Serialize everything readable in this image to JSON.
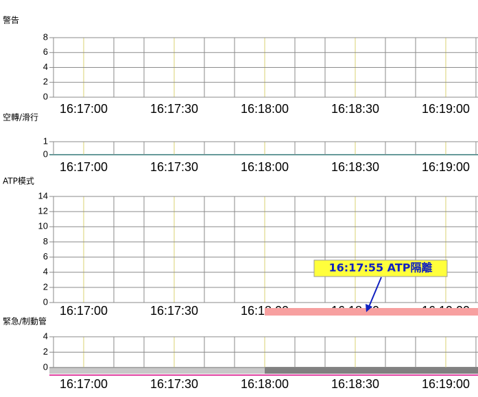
{
  "time_ticks": [
    "16:17:00",
    "16:17:30",
    "16:18:00",
    "16:18:30",
    "16:19:00"
  ],
  "panels": [
    {
      "title": "警告",
      "ylim": [
        0,
        8
      ],
      "yticks": [
        0,
        2,
        4,
        6,
        8
      ]
    },
    {
      "title": "空轉/滑行",
      "ylim": [
        0,
        1
      ],
      "yticks": [
        0,
        1
      ]
    },
    {
      "title": "ATP模式",
      "ylim": [
        0,
        14
      ],
      "yticks": [
        0,
        2,
        4,
        6,
        8,
        10,
        12,
        14
      ]
    },
    {
      "title": "緊急/制動管",
      "ylim": [
        0,
        4
      ],
      "yticks": [
        0,
        2,
        4
      ]
    }
  ],
  "annotation": "16:17:55 ATP隔離"
}
